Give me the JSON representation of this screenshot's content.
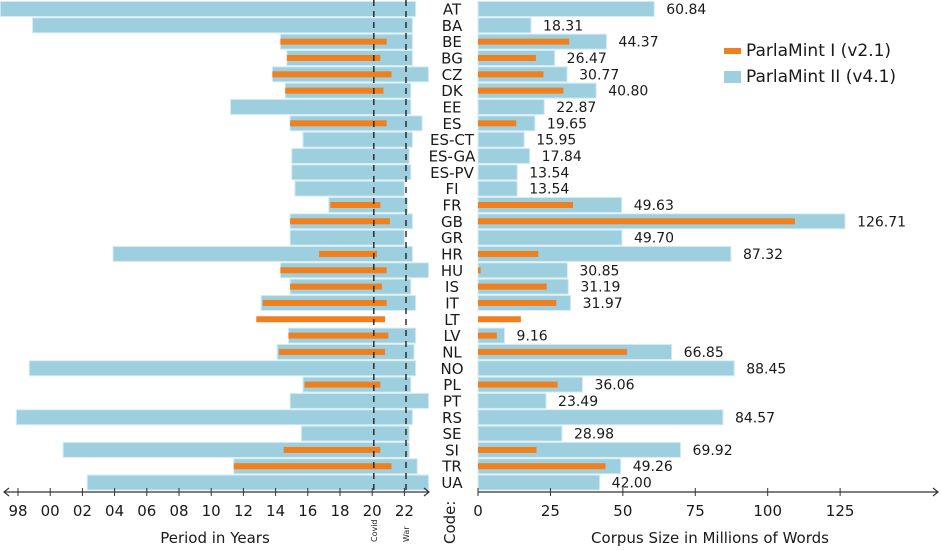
{
  "chart_data": {
    "type": "bar",
    "title": "",
    "legend": {
      "position": "top-right",
      "entries": [
        {
          "name": "ParlaMint I (v2.1)",
          "color": "#f07f1e"
        },
        {
          "name": "ParlaMint II (v4.1)",
          "color": "#9dcfdf"
        }
      ]
    },
    "code_axis_label": "Code:",
    "left_panel": {
      "type": "range-bar",
      "xlabel": "Period in Years",
      "tick_labels": [
        "98",
        "00",
        "02",
        "04",
        "06",
        "08",
        "10",
        "12",
        "14",
        "16",
        "18",
        "20",
        "22"
      ],
      "tick_years": [
        1998,
        2000,
        2002,
        2004,
        2006,
        2008,
        2010,
        2012,
        2014,
        2016,
        2018,
        2020,
        2022
      ],
      "xlim": [
        1996.9,
        2024
      ],
      "reference_lines": [
        {
          "label": "Covid",
          "year": 2020.1
        },
        {
          "label": "War",
          "year": 2022.1
        }
      ]
    },
    "right_panel": {
      "type": "bar",
      "xlabel": "Corpus Size in Millions of Words",
      "tick_labels": [
        "0",
        "25",
        "50",
        "75",
        "100",
        "125"
      ],
      "tick_values": [
        0,
        25,
        50,
        75,
        100,
        125
      ],
      "xlim": [
        0,
        160
      ]
    },
    "categories": [
      "AT",
      "BA",
      "BE",
      "BG",
      "CZ",
      "DK",
      "EE",
      "ES",
      "ES-CT",
      "ES-GA",
      "ES-PV",
      "FI",
      "FR",
      "GB",
      "GR",
      "HR",
      "HU",
      "IS",
      "IT",
      "LT",
      "LV",
      "NL",
      "NO",
      "PL",
      "PT",
      "RS",
      "SE",
      "SI",
      "TR",
      "UA"
    ],
    "series": [
      {
        "name": "ParlaMint II (v4.1)",
        "period": [
          [
            1996.9,
            2022.7
          ],
          [
            1998.9,
            2022.5
          ],
          [
            2014.3,
            2022.5
          ],
          [
            2014.7,
            2022.5
          ],
          [
            2013.8,
            2023.5
          ],
          [
            2014.6,
            2022.4
          ],
          [
            2011.2,
            2022.4
          ],
          [
            2014.9,
            2023.1
          ],
          [
            2015.7,
            2022.5
          ],
          [
            2015.0,
            2022.3
          ],
          [
            2015.0,
            2022.4
          ],
          [
            2015.2,
            2022.0
          ],
          [
            2017.3,
            2022.2
          ],
          [
            2014.9,
            2022.5
          ],
          [
            2014.9,
            2022.0
          ],
          [
            2003.9,
            2022.5
          ],
          [
            2014.3,
            2023.5
          ],
          [
            2014.9,
            2022.4
          ],
          [
            2013.1,
            2022.7
          ],
          null,
          [
            2014.8,
            2022.7
          ],
          [
            2014.1,
            2022.6
          ],
          [
            1998.7,
            2022.7
          ],
          [
            2015.7,
            2022.4
          ],
          [
            2014.9,
            2023.5
          ],
          [
            1997.9,
            2022.5
          ],
          [
            2015.6,
            2022.3
          ],
          [
            2000.8,
            2022.3
          ],
          [
            2011.4,
            2022.8
          ],
          [
            2002.3,
            2023.5
          ]
        ],
        "size_millions": [
          60.84,
          18.31,
          44.37,
          26.47,
          30.77,
          40.8,
          22.87,
          19.65,
          15.95,
          17.84,
          13.54,
          13.54,
          49.63,
          126.71,
          49.7,
          87.32,
          30.85,
          31.19,
          31.97,
          null,
          9.16,
          66.85,
          88.45,
          36.06,
          23.49,
          84.57,
          28.98,
          69.92,
          49.26,
          42.0
        ],
        "size_labels": [
          "60.84",
          "18.31",
          "44.37",
          "26.47",
          "30.77",
          "40.80",
          "22.87",
          "19.65",
          "15.95",
          "17.84",
          "13.54",
          "13.54",
          "49.63",
          "126.71",
          "49.70",
          "87.32",
          "30.85",
          "31.19",
          "31.97",
          "",
          "9.16",
          "66.85",
          "88.45",
          "36.06",
          "23.49",
          "84.57",
          "28.98",
          "69.92",
          "49.26",
          "42.00"
        ]
      },
      {
        "name": "ParlaMint I (v2.1)",
        "period": [
          null,
          null,
          [
            2014.3,
            2020.9
          ],
          [
            2014.7,
            2020.5
          ],
          [
            2013.8,
            2021.2
          ],
          [
            2014.6,
            2020.7
          ],
          null,
          [
            2014.9,
            2020.9
          ],
          null,
          null,
          null,
          null,
          [
            2017.4,
            2020.5
          ],
          [
            2014.9,
            2021.1
          ],
          null,
          [
            2016.7,
            2020.3
          ],
          [
            2014.3,
            2020.9
          ],
          [
            2014.9,
            2020.6
          ],
          [
            2013.2,
            2020.9
          ],
          [
            2012.8,
            2020.8
          ],
          [
            2014.8,
            2021.0
          ],
          [
            2014.2,
            2020.8
          ],
          null,
          [
            2015.8,
            2020.5
          ],
          null,
          null,
          null,
          [
            2014.5,
            2020.5
          ],
          [
            2011.4,
            2021.2
          ],
          null
        ],
        "size_millions": [
          null,
          null,
          31.5,
          20.0,
          22.6,
          29.5,
          null,
          13.2,
          null,
          null,
          null,
          null,
          32.8,
          109.4,
          null,
          20.8,
          0.9,
          23.7,
          27.0,
          14.8,
          6.5,
          51.4,
          null,
          27.5,
          null,
          null,
          null,
          20.2,
          44.0,
          null
        ]
      }
    ]
  }
}
